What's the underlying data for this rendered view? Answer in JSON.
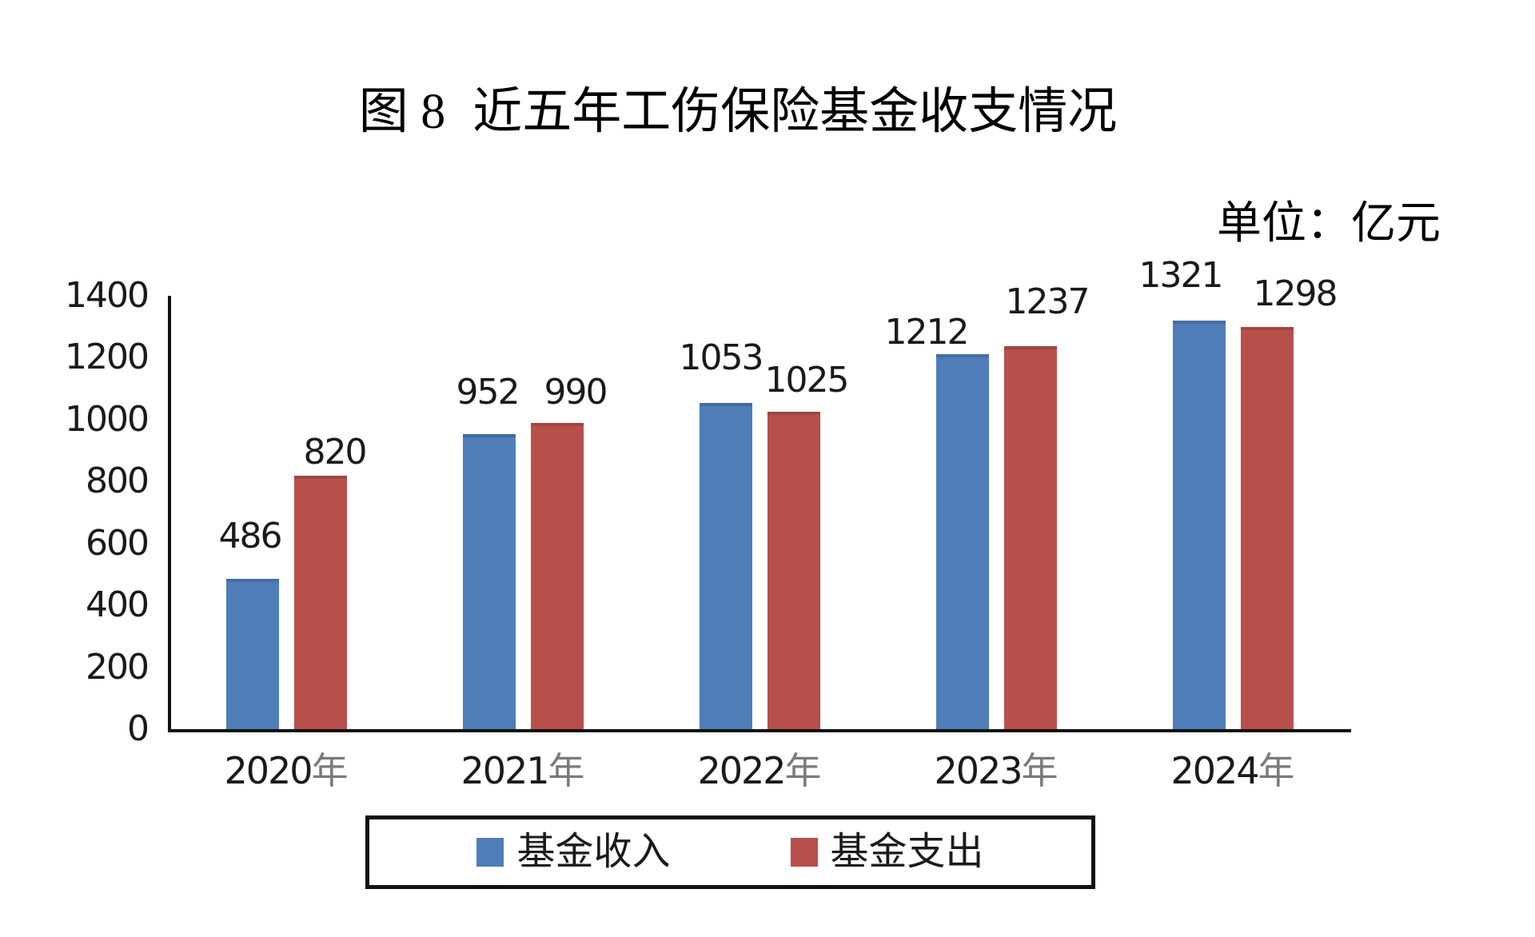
{
  "chart_data": {
    "type": "bar",
    "title_prefix": "图 8",
    "title_main": "近五年工伤保险基金收支情况",
    "unit_label": "单位：亿元",
    "categories": [
      "2020年",
      "2021年",
      "2022年",
      "2023年",
      "2024年"
    ],
    "series": [
      {
        "name": "基金收入",
        "color": "#4f7db8",
        "values": [
          486,
          952,
          1053,
          1212,
          1321
        ]
      },
      {
        "name": "基金支出",
        "color": "#b7504b",
        "values": [
          820,
          990,
          1025,
          1237,
          1298
        ]
      }
    ],
    "ylim": [
      0,
      1400
    ],
    "yticks": [
      0,
      200,
      400,
      600,
      800,
      1000,
      1200,
      1400
    ],
    "xlabel": "",
    "ylabel": "",
    "grid": false,
    "legend_position": "bottom",
    "data_labels": true
  }
}
